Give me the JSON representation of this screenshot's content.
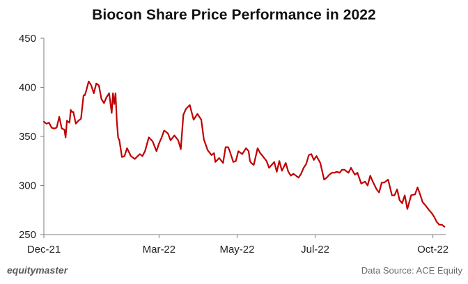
{
  "footer": {
    "brand": "equitymaster",
    "source": "Data Source: ACE Equity"
  },
  "chart_data": {
    "type": "line",
    "title": "Biocon Share Price Performance in 2022",
    "xlabel": "",
    "ylabel": "",
    "ylim": [
      250,
      450
    ],
    "yticks": [
      250,
      300,
      350,
      400,
      450
    ],
    "xlim": [
      "2021-12-01",
      "2022-10-11"
    ],
    "xticks": [
      {
        "label": "Dec-21",
        "date": "2021-12-01"
      },
      {
        "label": "Mar-22",
        "date": "2022-03-01"
      },
      {
        "label": "May-22",
        "date": "2022-05-01"
      },
      {
        "label": "Jul-22",
        "date": "2022-07-01"
      },
      {
        "label": "Oct-22",
        "date": "2022-10-01"
      }
    ],
    "grid": false,
    "legend": "none",
    "line_color": "#c00000",
    "series": [
      {
        "x": [
          "2021-12-01",
          "2021-12-03",
          "2021-12-05",
          "2021-12-07",
          "2021-12-09",
          "2021-12-11",
          "2021-12-13",
          "2021-12-15",
          "2021-12-17",
          "2021-12-18",
          "2021-12-19",
          "2021-12-21",
          "2021-12-22",
          "2021-12-23",
          "2021-12-24",
          "2021-12-26",
          "2021-12-28",
          "2021-12-30",
          "2022-01-01",
          "2022-01-02",
          "2022-01-03",
          "2022-01-05",
          "2022-01-07",
          "2022-01-09",
          "2022-01-11",
          "2022-01-13",
          "2022-01-15",
          "2022-01-17",
          "2022-01-19",
          "2022-01-21",
          "2022-01-23",
          "2022-01-24",
          "2022-01-25",
          "2022-01-26",
          "2022-01-27",
          "2022-01-28",
          "2022-01-29",
          "2022-01-31",
          "2022-02-02",
          "2022-02-04",
          "2022-02-07",
          "2022-02-10",
          "2022-02-14",
          "2022-02-16",
          "2022-02-18",
          "2022-02-21",
          "2022-02-24",
          "2022-02-27",
          "2022-03-01",
          "2022-03-03",
          "2022-03-05",
          "2022-03-08",
          "2022-03-10",
          "2022-03-13",
          "2022-03-16",
          "2022-03-18",
          "2022-03-20",
          "2022-03-22",
          "2022-03-25",
          "2022-03-28",
          "2022-03-31",
          "2022-04-03",
          "2022-04-05",
          "2022-04-08",
          "2022-04-11",
          "2022-04-13",
          "2022-04-14",
          "2022-04-17",
          "2022-04-20",
          "2022-04-22",
          "2022-04-24",
          "2022-04-25",
          "2022-04-28",
          "2022-04-30",
          "2022-05-02",
          "2022-05-05",
          "2022-05-08",
          "2022-05-10",
          "2022-05-11",
          "2022-05-12",
          "2022-05-14",
          "2022-05-17",
          "2022-05-19",
          "2022-05-21",
          "2022-05-24",
          "2022-05-26",
          "2022-05-30",
          "2022-06-01",
          "2022-06-03",
          "2022-06-05",
          "2022-06-08",
          "2022-06-10",
          "2022-06-12",
          "2022-06-14",
          "2022-06-16",
          "2022-06-18",
          "2022-06-20",
          "2022-06-22",
          "2022-06-24",
          "2022-06-26",
          "2022-06-28",
          "2022-06-30",
          "2022-07-02",
          "2022-07-05",
          "2022-07-08",
          "2022-07-10",
          "2022-07-12",
          "2022-07-14",
          "2022-07-16",
          "2022-07-18",
          "2022-07-20",
          "2022-07-22",
          "2022-07-24",
          "2022-07-27",
          "2022-07-29",
          "2022-08-01",
          "2022-08-03",
          "2022-08-06",
          "2022-08-09",
          "2022-08-11",
          "2022-08-13",
          "2022-08-15",
          "2022-08-18",
          "2022-08-20",
          "2022-08-22",
          "2022-08-24",
          "2022-08-27",
          "2022-08-30",
          "2022-09-01",
          "2022-09-03",
          "2022-09-05",
          "2022-09-07",
          "2022-09-09",
          "2022-09-11",
          "2022-09-14",
          "2022-09-17",
          "2022-09-19",
          "2022-09-21",
          "2022-09-23",
          "2022-09-25",
          "2022-09-28",
          "2022-09-30",
          "2022-10-02",
          "2022-10-04",
          "2022-10-06",
          "2022-10-08",
          "2022-10-10"
        ],
        "values": [
          365,
          363,
          364,
          359,
          358,
          359,
          370,
          358,
          357,
          349,
          366,
          364,
          377,
          375,
          375,
          363,
          366,
          368,
          392,
          392,
          396,
          406,
          402,
          394,
          404,
          402,
          388,
          384,
          390,
          394,
          374,
          394,
          383,
          394,
          366,
          349,
          346,
          329,
          330,
          338,
          330,
          327,
          332,
          330,
          335,
          349,
          345,
          335,
          343,
          349,
          356,
          353,
          346,
          351,
          346,
          337,
          372,
          378,
          382,
          367,
          373,
          367,
          347,
          336,
          331,
          333,
          324,
          328,
          323,
          339,
          339,
          336,
          324,
          325,
          335,
          332,
          338,
          335,
          325,
          323,
          321,
          338,
          333,
          330,
          325,
          318,
          324,
          314,
          325,
          315,
          323,
          314,
          310,
          312,
          310,
          308,
          312,
          318,
          322,
          331,
          332,
          326,
          330,
          323,
          306,
          308,
          311,
          313,
          313,
          314,
          313,
          316,
          316,
          313,
          318,
          311,
          313,
          302,
          304,
          300,
          310,
          304,
          296,
          293,
          303,
          303,
          306,
          290,
          290,
          296,
          285,
          282,
          290,
          276,
          290,
          291,
          298,
          291,
          283,
          280,
          275,
          272,
          268,
          263,
          260,
          260,
          258
        ]
      }
    ]
  }
}
